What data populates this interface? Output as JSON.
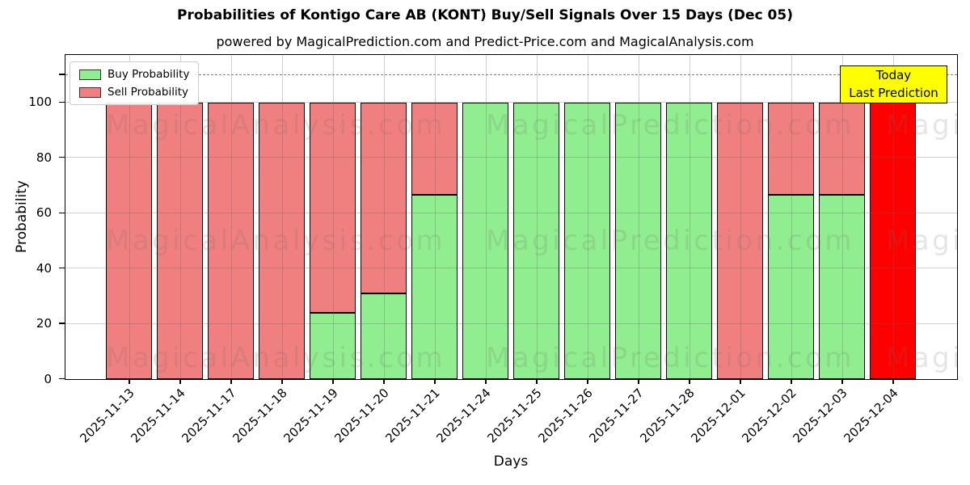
{
  "annotation": {
    "line1": "Today",
    "line2": "Last Prediction",
    "bg_color": "#FFFF00"
  },
  "watermarks": {
    "texts": [
      "MagicalAnalysis.com",
      "MagicalPrediction.com"
    ],
    "color": "rgba(120,105,105,0.18)"
  },
  "chart_data": {
    "type": "bar",
    "stacked": true,
    "title": "Probabilities of Kontigo Care AB (KONT) Buy/Sell Signals Over 15 Days (Dec 05)",
    "subtitle": "powered by MagicalPrediction.com and Predict-Price.com and MagicalAnalysis.com",
    "xlabel": "Days",
    "ylabel": "Probability",
    "categories": [
      "2025-11-13",
      "2025-11-14",
      "2025-11-17",
      "2025-11-18",
      "2025-11-19",
      "2025-11-20",
      "2025-11-21",
      "2025-11-24",
      "2025-11-25",
      "2025-11-26",
      "2025-11-27",
      "2025-11-28",
      "2025-12-01",
      "2025-12-02",
      "2025-12-03",
      "2025-12-04"
    ],
    "series": [
      {
        "name": "Buy Probability",
        "color": "#90EE90",
        "values": [
          0,
          0,
          0,
          0,
          24,
          31,
          66.7,
          100,
          100,
          100,
          100,
          100,
          0,
          66.7,
          66.7,
          0
        ]
      },
      {
        "name": "Sell Probability",
        "color": "#F08080",
        "values": [
          100,
          100,
          100,
          100,
          76,
          69,
          33.3,
          0,
          0,
          0,
          0,
          0,
          100,
          33.3,
          33.3,
          100
        ]
      }
    ],
    "highlight_bar": {
      "index": 15,
      "color": "#FF0000",
      "label": "Today / Last Prediction"
    },
    "yticks": [
      0,
      20,
      40,
      60,
      80,
      100
    ],
    "ylim": [
      0,
      116.9
    ],
    "dashed_line_y": 110,
    "grid": true,
    "legend_position": "upper left",
    "bar_edge_color": "#000000"
  }
}
